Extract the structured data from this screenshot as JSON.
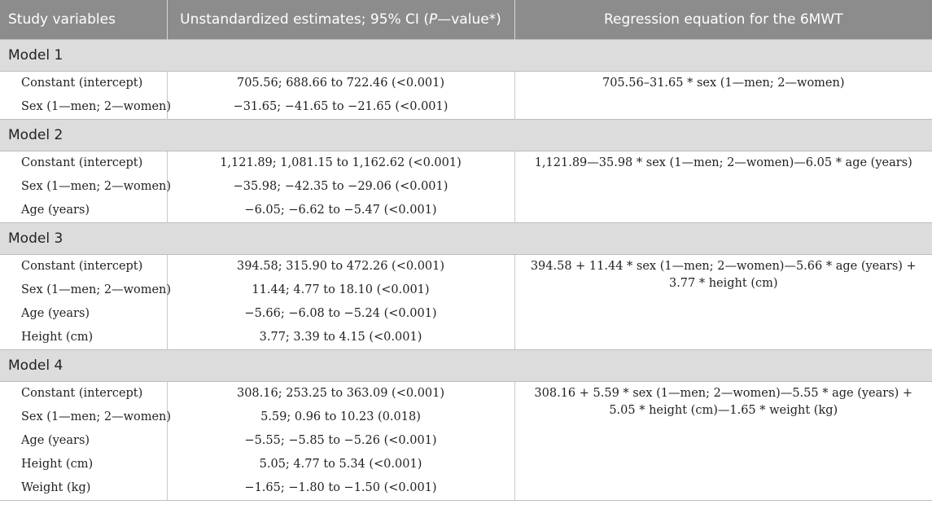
{
  "header": {
    "col1": "Study variables",
    "col2_prefix": "Unstandardized estimates; 95% CI (",
    "col2_italic": "P",
    "col2_suffix": "—value*)",
    "col3": "Regression equation for the 6MWT"
  },
  "models": [
    {
      "label": "Model 1",
      "rows": [
        {
          "variable": "Constant (intercept)",
          "estimate": "705.56; 688.66 to 722.46 (<0.001)"
        },
        {
          "variable": "Sex (1—men; 2—women)",
          "estimate": "−31.65; −41.65 to −21.65 (<0.001)"
        }
      ],
      "equation": "705.56–31.65 * sex (1—men; 2—women)"
    },
    {
      "label": "Model 2",
      "rows": [
        {
          "variable": "Constant (intercept)",
          "estimate": "1,121.89; 1,081.15 to 1,162.62 (<0.001)"
        },
        {
          "variable": "Sex (1—men; 2—women)",
          "estimate": "−35.98; −42.35 to −29.06 (<0.001)"
        },
        {
          "variable": "Age (years)",
          "estimate": "−6.05; −6.62 to −5.47 (<0.001)"
        }
      ],
      "equation": "1,121.89—35.98 * sex (1—men; 2—women)—6.05 * age (years)"
    },
    {
      "label": "Model 3",
      "rows": [
        {
          "variable": "Constant (intercept)",
          "estimate": "394.58; 315.90 to 472.26 (<0.001)"
        },
        {
          "variable": "Sex (1—men; 2—women)",
          "estimate": "11.44; 4.77 to 18.10 (<0.001)"
        },
        {
          "variable": "Age (years)",
          "estimate": "−5.66; −6.08 to −5.24 (<0.001)"
        },
        {
          "variable": "Height (cm)",
          "estimate": "3.77; 3.39 to 4.15 (<0.001)"
        }
      ],
      "equation": "394.58 + 11.44 * sex (1—men; 2—women)—5.66 * age (years) + 3.77 * height (cm)"
    },
    {
      "label": "Model 4",
      "rows": [
        {
          "variable": "Constant (intercept)",
          "estimate": "308.16; 253.25 to 363.09 (<0.001)"
        },
        {
          "variable": "Sex (1—men; 2—women)",
          "estimate": "5.59; 0.96 to 10.23 (0.018)"
        },
        {
          "variable": "Age (years)",
          "estimate": "−5.55; −5.85 to −5.26 (<0.001)"
        },
        {
          "variable": "Height (cm)",
          "estimate": "5.05; 4.77 to 5.34 (<0.001)"
        },
        {
          "variable": "Weight (kg)",
          "estimate": "−1.65; −1.80 to −1.50 (<0.001)"
        }
      ],
      "equation": "308.16 + 5.59 * sex (1—men; 2—women)—5.55 * age (years) + 5.05 * height (cm)—1.65 * weight (kg)"
    }
  ]
}
